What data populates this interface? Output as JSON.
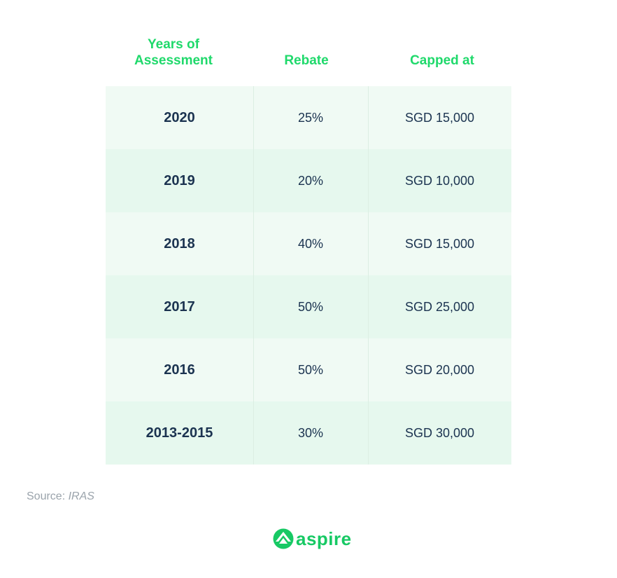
{
  "headers": {
    "years": [
      "Years of",
      "Assessment"
    ],
    "rebate": "Rebate",
    "capped": "Capped at"
  },
  "rows": [
    {
      "year": "2020",
      "rebate": "25%",
      "capped": "SGD 15,000"
    },
    {
      "year": "2019",
      "rebate": "20%",
      "capped": "SGD 10,000"
    },
    {
      "year": "2018",
      "rebate": "40%",
      "capped": "SGD 15,000"
    },
    {
      "year": "2017",
      "rebate": "50%",
      "capped": "SGD 25,000"
    },
    {
      "year": "2016",
      "rebate": "50%",
      "capped": "SGD 20,000"
    },
    {
      "year": "2013-2015",
      "rebate": "30%",
      "capped": "SGD 30,000"
    }
  ],
  "source": {
    "prefix": "Source:",
    "name": "IRAS"
  },
  "logo": {
    "text": "aspire",
    "icon": "aspire-logo-icon"
  },
  "colors": {
    "accent": "#1fd96b",
    "text": "#1b3350",
    "row_light": "#f0faf4",
    "row_alt": "#e6f8ee"
  }
}
